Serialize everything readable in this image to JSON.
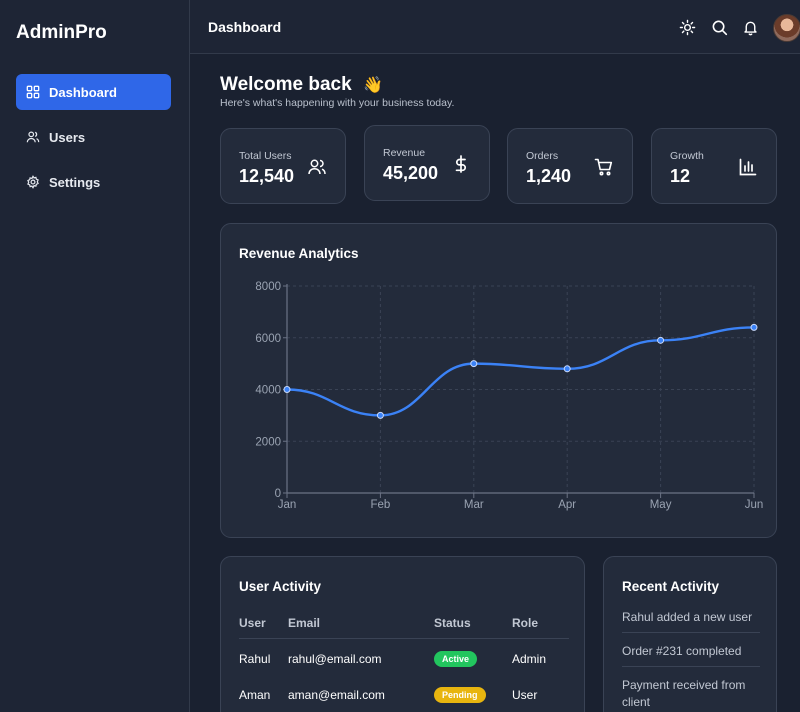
{
  "app": {
    "brand": "AdminPro"
  },
  "sidebar": {
    "items": [
      {
        "label": "Dashboard",
        "icon": "grid-icon",
        "active": true
      },
      {
        "label": "Users",
        "icon": "users-icon",
        "active": false
      },
      {
        "label": "Settings",
        "icon": "gear-icon",
        "active": false
      }
    ]
  },
  "header": {
    "title": "Dashboard",
    "icons": [
      "sun-icon",
      "search-icon",
      "bell-icon"
    ]
  },
  "welcome": {
    "title": "Welcome back",
    "emoji": "👋",
    "subtitle": "Here's what's happening with your business today."
  },
  "stats": [
    {
      "label": "Total Users",
      "value": "12,540",
      "icon": "users-icon"
    },
    {
      "label": "Revenue",
      "value": "45,200",
      "icon": "dollar-icon"
    },
    {
      "label": "Orders",
      "value": "1,240",
      "icon": "cart-icon"
    },
    {
      "label": "Growth",
      "value": "12",
      "icon": "bar-chart-icon"
    }
  ],
  "revenue": {
    "title": "Revenue Analytics"
  },
  "chart_data": {
    "type": "line",
    "categories": [
      "Jan",
      "Feb",
      "Mar",
      "Apr",
      "May",
      "Jun"
    ],
    "series": [
      {
        "values": [
          4000,
          3000,
          5000,
          4800,
          5900,
          6400
        ]
      }
    ],
    "ylim": [
      0,
      8000
    ],
    "yticks": [
      0,
      2000,
      4000,
      6000,
      8000
    ],
    "grid": true,
    "line_color": "#3b82f6"
  },
  "user_activity": {
    "title": "User Activity",
    "columns": [
      "User",
      "Email",
      "Status",
      "Role"
    ],
    "rows": [
      {
        "user": "Rahul",
        "email": "rahul@email.com",
        "status": "Active",
        "role": "Admin"
      },
      {
        "user": "Aman",
        "email": "aman@email.com",
        "status": "Pending",
        "role": "User"
      }
    ]
  },
  "recent_activity": {
    "title": "Recent Activity",
    "items": [
      "Rahul added a new user",
      "Order #231 completed",
      "Payment received from client"
    ]
  },
  "colors": {
    "accent": "#2f67e8",
    "active_badge": "#22c55e",
    "pending_badge": "#e8b50f"
  }
}
